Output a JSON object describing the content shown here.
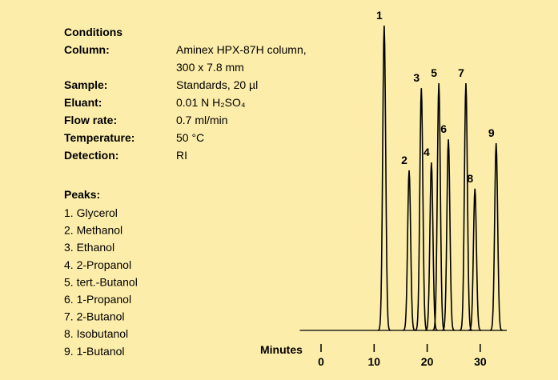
{
  "conditions": {
    "title": "Conditions",
    "rows": [
      {
        "label": "Column:",
        "value": [
          "Aminex HPX-87H column,",
          "300 x 7.8 mm"
        ]
      },
      {
        "label": "Sample:",
        "value": [
          "Standards, 20 µl"
        ]
      },
      {
        "label": "Eluant:",
        "value": [
          "0.01 N H₂SO₄"
        ]
      },
      {
        "label": "Flow rate:",
        "value": [
          "0.7 ml/min"
        ]
      },
      {
        "label": "Temperature:",
        "value": [
          "50 °C"
        ]
      },
      {
        "label": "Detection:",
        "value": [
          "RI"
        ]
      }
    ]
  },
  "peak_list": {
    "title": "Peaks:",
    "items": [
      "1. Glycerol",
      "2. Methanol",
      "3. Ethanol",
      "4. 2-Propanol",
      "5. tert.-Butanol",
      "6. 1-Propanol",
      "7. 2-Butanol",
      "8. Isobutanol",
      "9. 1-Butanol"
    ]
  },
  "chart_data": {
    "type": "chromatogram",
    "x_label": "Minutes",
    "xlim": [
      -4,
      35
    ],
    "xticks": [
      0,
      10,
      20,
      30
    ],
    "ylim": [
      0,
      100
    ],
    "color": "#000000",
    "peaks": [
      {
        "label": "1",
        "time": 11.9,
        "height": 100
      },
      {
        "label": "2",
        "time": 16.6,
        "height": 52.5
      },
      {
        "label": "3",
        "time": 18.9,
        "height": 79.5
      },
      {
        "label": "4",
        "time": 20.8,
        "height": 55.1
      },
      {
        "label": "5",
        "time": 22.2,
        "height": 81.1
      },
      {
        "label": "6",
        "time": 24.0,
        "height": 62.7
      },
      {
        "label": "7",
        "time": 27.3,
        "height": 81.1
      },
      {
        "label": "8",
        "time": 29.0,
        "height": 46.5
      },
      {
        "label": "9",
        "time": 33.0,
        "height": 61.4
      }
    ]
  }
}
